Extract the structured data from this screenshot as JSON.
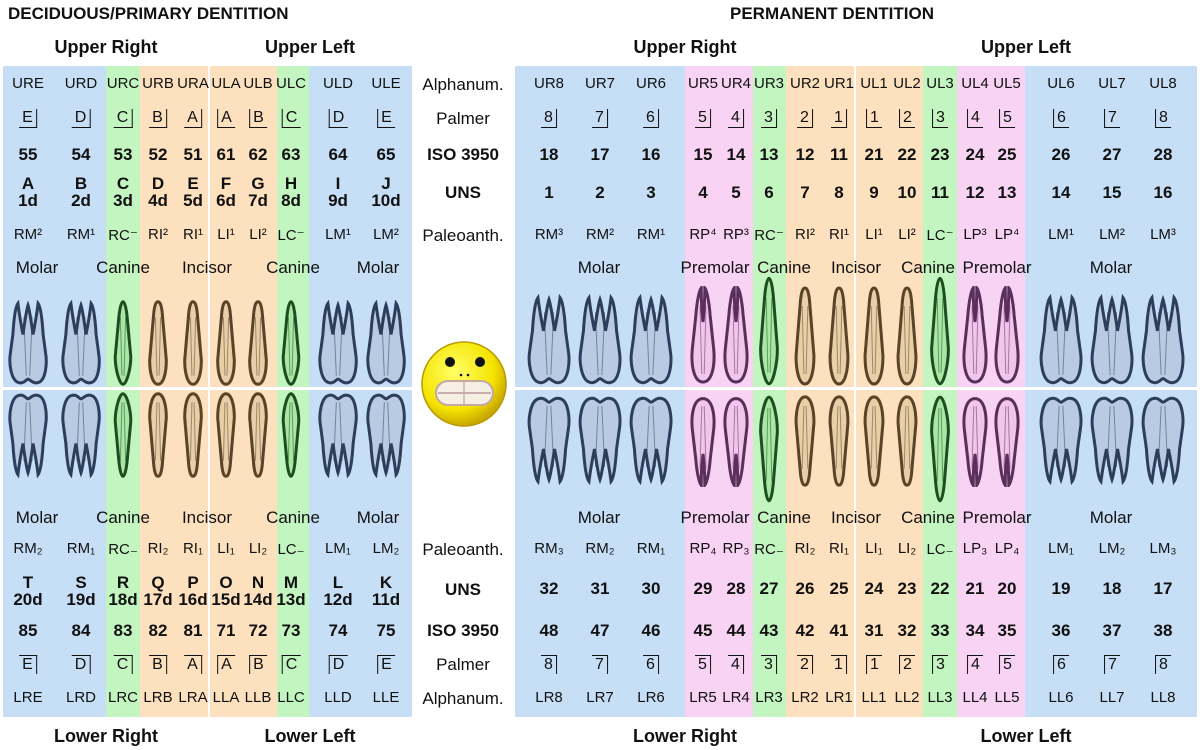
{
  "titles": {
    "deciduous": "DECIDUOUS/PRIMARY DENTITION",
    "permanent": "PERMANENT DENTITION"
  },
  "quadrants": {
    "upper_right": "Upper Right",
    "upper_left": "Upper Left",
    "lower_right": "Lower Right",
    "lower_left": "Lower Left"
  },
  "row_labels": {
    "alphanum": "Alphanum.",
    "palmer": "Palmer",
    "iso": "ISO 3950",
    "uns": "UNS",
    "paleo": "Paleoanth."
  },
  "groups": {
    "molar": "Molar",
    "canine": "Canine",
    "incisor": "Incisor",
    "premolar": "Premolar"
  },
  "colors": {
    "molar": "#c6dff7",
    "premolar": "#f8d3f4",
    "canine": "#c2f5c0",
    "incisor": "#fde0bd"
  },
  "deciduous": {
    "upper": {
      "alpha": [
        "URE",
        "URD",
        "URC",
        "URB",
        "URA",
        "ULA",
        "ULB",
        "ULC",
        "ULD",
        "ULE"
      ],
      "palmer": [
        "E",
        "D",
        "C",
        "B",
        "A",
        "A",
        "B",
        "C",
        "D",
        "E"
      ],
      "iso": [
        "55",
        "54",
        "53",
        "52",
        "51",
        "61",
        "62",
        "63",
        "64",
        "65"
      ],
      "uns_letter": [
        "A",
        "B",
        "C",
        "D",
        "E",
        "F",
        "G",
        "H",
        "I",
        "J"
      ],
      "uns_num": [
        "1d",
        "2d",
        "3d",
        "4d",
        "5d",
        "6d",
        "7d",
        "8d",
        "9d",
        "10d"
      ],
      "paleo": [
        "RM²",
        "RM¹",
        "RC⁻",
        "RI²",
        "RI¹",
        "LI¹",
        "LI²",
        "LC⁻",
        "LM¹",
        "LM²"
      ]
    },
    "lower": {
      "paleo": [
        "RM₂",
        "RM₁",
        "RC₋",
        "RI₂",
        "RI₁",
        "LI₁",
        "LI₂",
        "LC₋",
        "LM₁",
        "LM₂"
      ],
      "uns_letter": [
        "T",
        "S",
        "R",
        "Q",
        "P",
        "O",
        "N",
        "M",
        "L",
        "K"
      ],
      "uns_num": [
        "20d",
        "19d",
        "18d",
        "17d",
        "16d",
        "15d",
        "14d",
        "13d",
        "12d",
        "11d"
      ],
      "iso": [
        "85",
        "84",
        "83",
        "82",
        "81",
        "71",
        "72",
        "73",
        "74",
        "75"
      ],
      "palmer": [
        "E",
        "D",
        "C",
        "B",
        "A",
        "A",
        "B",
        "C",
        "D",
        "E"
      ],
      "alpha": [
        "LRE",
        "LRD",
        "LRC",
        "LRB",
        "LRA",
        "LLA",
        "LLB",
        "LLC",
        "LLD",
        "LLE"
      ]
    }
  },
  "permanent": {
    "upper": {
      "alpha": [
        "UR8",
        "UR7",
        "UR6",
        "UR5",
        "UR4",
        "UR3",
        "UR2",
        "UR1",
        "UL1",
        "UL2",
        "UL3",
        "UL4",
        "UL5",
        "UL6",
        "UL7",
        "UL8"
      ],
      "palmer": [
        "8",
        "7",
        "6",
        "5",
        "4",
        "3",
        "2",
        "1",
        "1",
        "2",
        "3",
        "4",
        "5",
        "6",
        "7",
        "8"
      ],
      "iso": [
        "18",
        "17",
        "16",
        "15",
        "14",
        "13",
        "12",
        "11",
        "21",
        "22",
        "23",
        "24",
        "25",
        "26",
        "27",
        "28"
      ],
      "uns": [
        "1",
        "2",
        "3",
        "4",
        "5",
        "6",
        "7",
        "8",
        "9",
        "10",
        "11",
        "12",
        "13",
        "14",
        "15",
        "16"
      ],
      "paleo": [
        "RM³",
        "RM²",
        "RM¹",
        "RP⁴",
        "RP³",
        "RC⁻",
        "RI²",
        "RI¹",
        "LI¹",
        "LI²",
        "LC⁻",
        "LP³",
        "LP⁴",
        "LM¹",
        "LM²",
        "LM³"
      ]
    },
    "lower": {
      "paleo": [
        "RM₃",
        "RM₂",
        "RM₁",
        "RP₄",
        "RP₃",
        "RC₋",
        "RI₂",
        "RI₁",
        "LI₁",
        "LI₂",
        "LC₋",
        "LP₃",
        "LP₄",
        "LM₁",
        "LM₂",
        "LM₃"
      ],
      "uns": [
        "32",
        "31",
        "30",
        "29",
        "28",
        "27",
        "26",
        "25",
        "24",
        "23",
        "22",
        "21",
        "20",
        "19",
        "18",
        "17"
      ],
      "iso": [
        "48",
        "47",
        "46",
        "45",
        "44",
        "43",
        "42",
        "41",
        "31",
        "32",
        "33",
        "34",
        "35",
        "36",
        "37",
        "38"
      ],
      "palmer": [
        "8",
        "7",
        "6",
        "5",
        "4",
        "3",
        "2",
        "1",
        "1",
        "2",
        "3",
        "4",
        "5",
        "6",
        "7",
        "8"
      ],
      "alpha": [
        "LR8",
        "LR7",
        "LR6",
        "LR5",
        "LR4",
        "LR3",
        "LR2",
        "LR1",
        "LL1",
        "LL2",
        "LL3",
        "LL4",
        "LL5",
        "LL6",
        "LL7",
        "LL8"
      ]
    }
  }
}
